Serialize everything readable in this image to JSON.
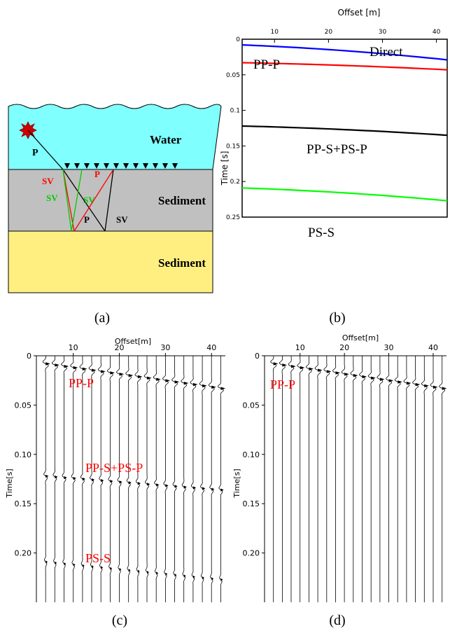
{
  "panel_a": {
    "caption": "(a)",
    "layers": [
      {
        "label": "Water",
        "color": "#80ffff"
      },
      {
        "label": "Sediment",
        "color": "#c0c0c0"
      },
      {
        "label": "Sediment",
        "color": "#ffef80"
      }
    ],
    "ray_labels": {
      "p_incident": "P",
      "sv_red": "SV",
      "sv_green": "SV",
      "p_red": "P",
      "sv_green2": "SV",
      "p_black": "P",
      "sv_black": "SV"
    },
    "ray_colors": {
      "red": "#ff0000",
      "green": "#00cc00",
      "black": "#000000"
    },
    "source_icon": "explosion-star-icon",
    "receiver_icon": "triangle-receiver-icon"
  },
  "panel_b": {
    "caption": "(b)",
    "chart_data": {
      "type": "line",
      "xlabel": "Offset [m]",
      "ylabel": "Time [s]",
      "xticks": [
        "10",
        "20",
        "30",
        "40"
      ],
      "yticks": [
        "0",
        "0.05",
        "0.1",
        "0.15",
        "0.2",
        "0.25"
      ],
      "xlim": [
        4,
        42
      ],
      "ylim": [
        0,
        0.25
      ],
      "series": [
        {
          "name": "Direct",
          "color": "#0000ff",
          "x": [
            4,
            42
          ],
          "y": [
            0.008,
            0.029
          ]
        },
        {
          "name": "PP-P",
          "color": "#ff0000",
          "x": [
            4,
            42
          ],
          "y": [
            0.033,
            0.043
          ]
        },
        {
          "name": "PP-S+PS-P",
          "color": "#000000",
          "x": [
            4,
            42
          ],
          "y": [
            0.122,
            0.135
          ]
        },
        {
          "name": "PS-S",
          "color": "#00ff00",
          "x": [
            4,
            42
          ],
          "y": [
            0.209,
            0.227
          ]
        }
      ]
    }
  },
  "panel_c": {
    "caption": "(c)",
    "chart_data": {
      "type": "scatter",
      "xlabel": "Offset[m]",
      "ylabel": "Time[s]",
      "xticks": [
        "10",
        "20",
        "30",
        "40"
      ],
      "yticks": [
        "0",
        "0.05",
        "0.10",
        "0.15",
        "0.20"
      ],
      "xlim": [
        2,
        43
      ],
      "ylim": [
        0,
        0.25
      ],
      "traces": [
        4,
        6,
        8,
        10,
        12,
        14,
        16,
        18,
        20,
        22,
        24,
        26,
        28,
        30,
        32,
        34,
        36,
        38,
        40,
        42
      ],
      "events": [
        {
          "name": "PP-P",
          "t0": 0.008,
          "t1": 0.033
        },
        {
          "name": "PP-S+PS-P",
          "t0": 0.122,
          "t1": 0.136
        },
        {
          "name": "PS-S",
          "t0": 0.209,
          "t1": 0.227
        }
      ]
    }
  },
  "panel_d": {
    "caption": "(d)",
    "chart_data": {
      "type": "scatter",
      "xlabel": "Offset[m]",
      "ylabel": "Time[s]",
      "xticks": [
        "10",
        "20",
        "30",
        "40"
      ],
      "yticks": [
        "0",
        "0.05",
        "0.10",
        "0.15",
        "0.20"
      ],
      "xlim": [
        2,
        43
      ],
      "ylim": [
        0,
        0.25
      ],
      "traces": [
        4,
        6,
        8,
        10,
        12,
        14,
        16,
        18,
        20,
        22,
        24,
        26,
        28,
        30,
        32,
        34,
        36,
        38,
        40,
        42
      ],
      "events": [
        {
          "name": "PP-P",
          "t0": 0.008,
          "t1": 0.033
        }
      ]
    }
  }
}
